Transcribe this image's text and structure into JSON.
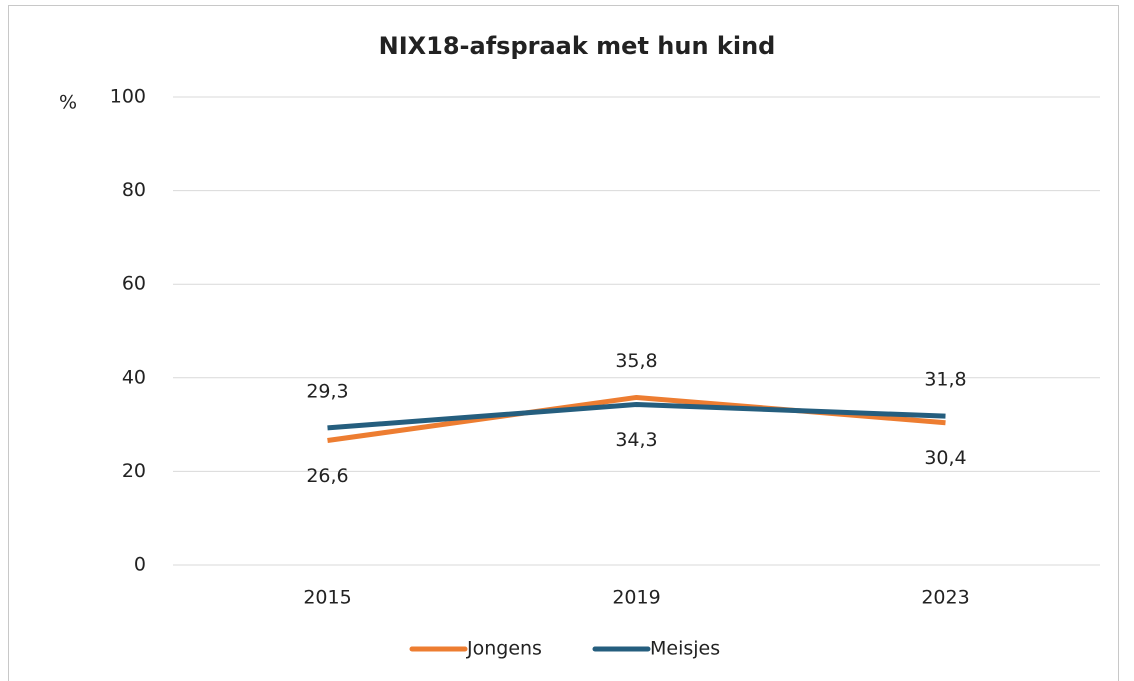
{
  "chart_data": {
    "type": "line",
    "title": "NIX18-afspraak met hun kind",
    "y_label": "%",
    "categories": [
      "2015",
      "2019",
      "2023"
    ],
    "series": [
      {
        "name": "Jongens",
        "color": "#ed7d31",
        "values": [
          26.6,
          35.8,
          30.4
        ],
        "value_labels": [
          "26,6",
          "35,8",
          "30,4"
        ]
      },
      {
        "name": "Meisjes",
        "color": "#255e7e",
        "values": [
          29.3,
          34.3,
          31.8
        ],
        "value_labels": [
          "29,3",
          "34,3",
          "31,8"
        ]
      }
    ],
    "ylim": [
      0,
      100
    ],
    "yticks": [
      0,
      20,
      40,
      60,
      80,
      100
    ],
    "grid": true,
    "legend": "bottom"
  }
}
